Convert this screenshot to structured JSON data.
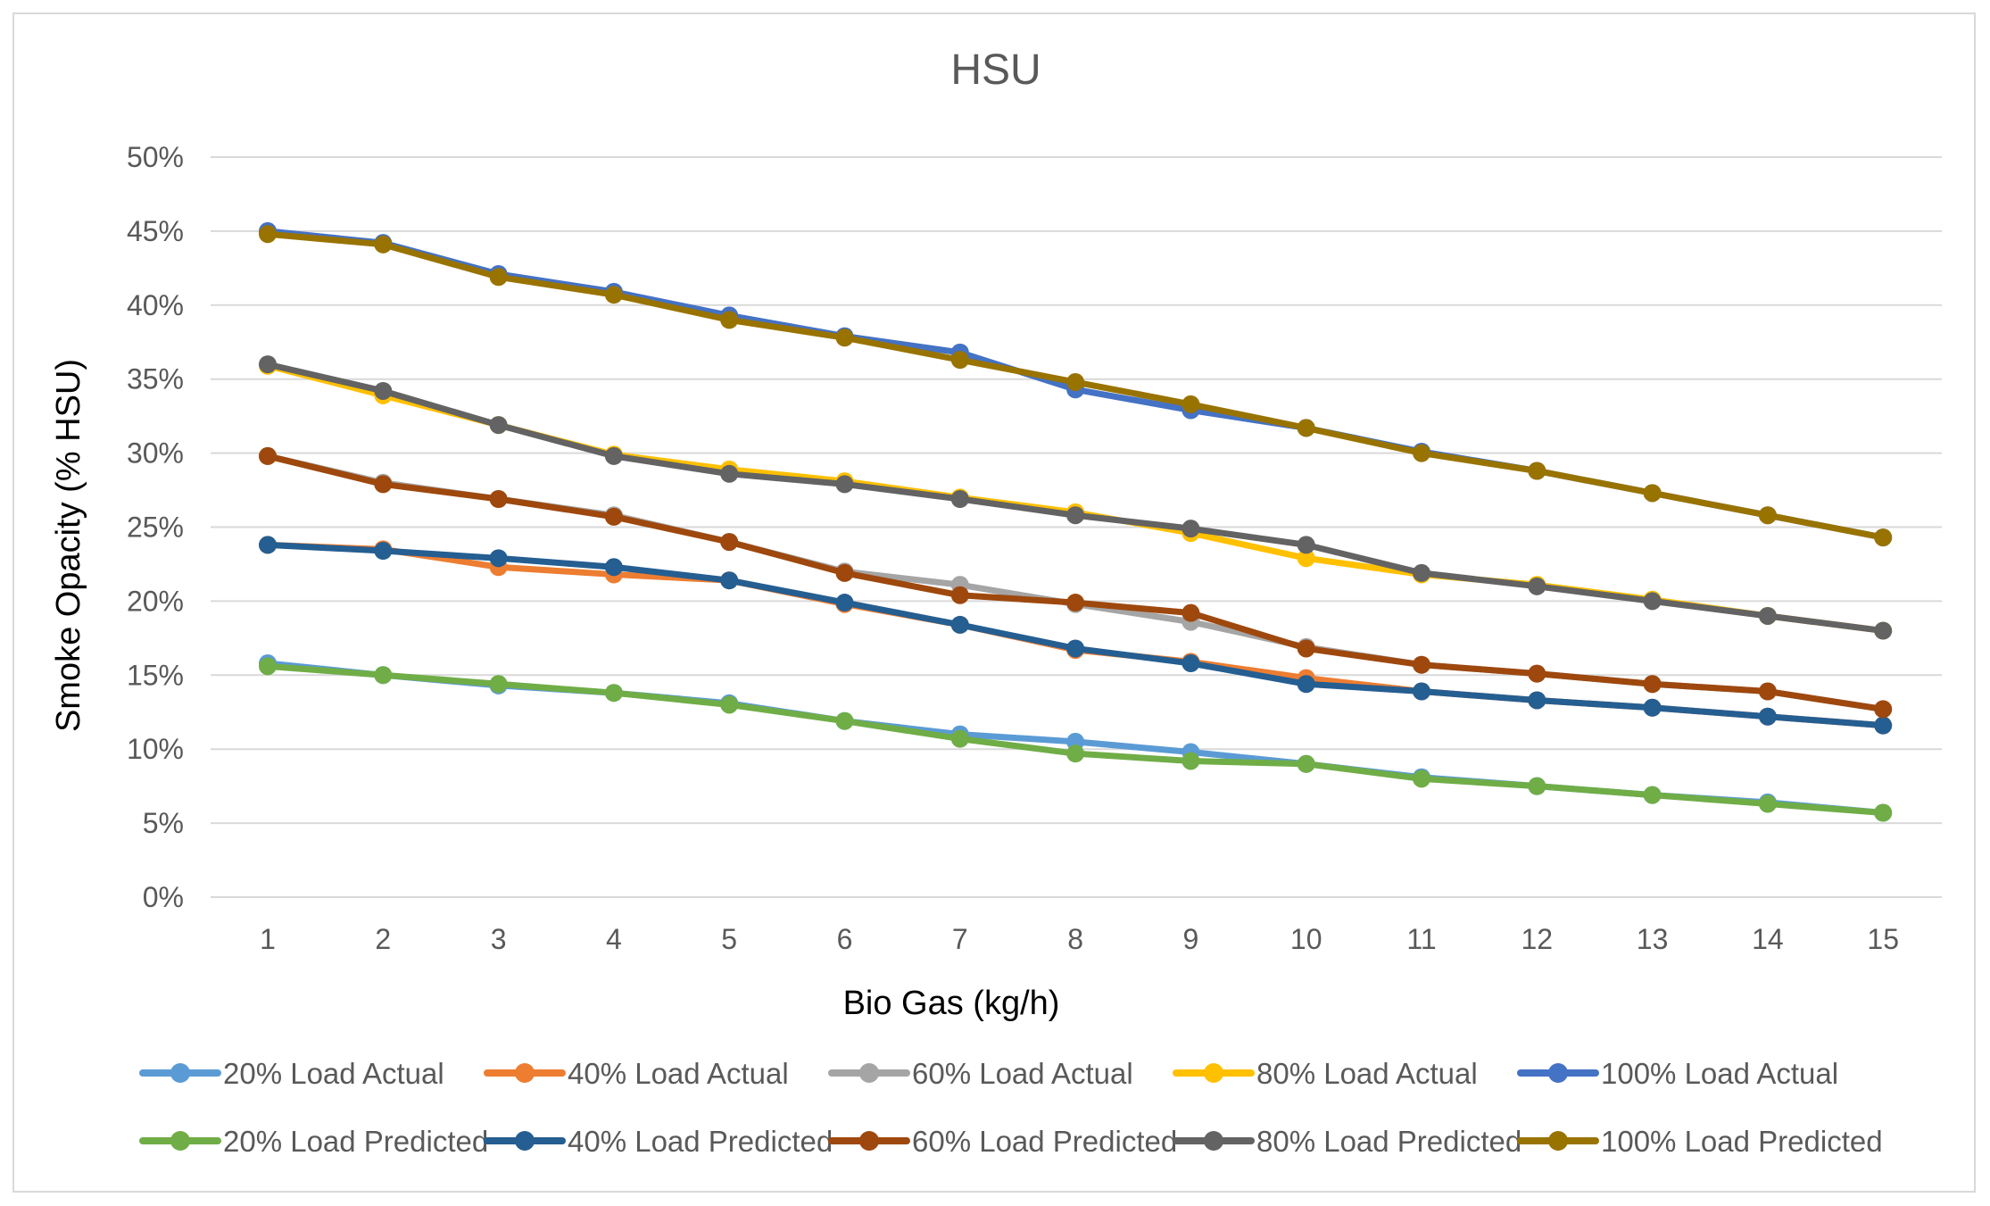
{
  "chart_data": {
    "type": "line",
    "title": "HSU",
    "xlabel": "Bio Gas (kg/h)",
    "ylabel": "Smoke Opacity (% HSU)",
    "ylim": [
      0,
      50
    ],
    "y_ticks": [
      "0%",
      "5%",
      "10%",
      "15%",
      "20%",
      "25%",
      "30%",
      "35%",
      "40%",
      "45%",
      "50%"
    ],
    "y_tick_values": [
      0,
      5,
      10,
      15,
      20,
      25,
      30,
      35,
      40,
      45,
      50
    ],
    "categories": [
      "1",
      "2",
      "3",
      "4",
      "5",
      "6",
      "7",
      "8",
      "9",
      "10",
      "11",
      "12",
      "13",
      "14",
      "15"
    ],
    "grid": true,
    "legend_position": "bottom",
    "series": [
      {
        "name": "20% Load Actual",
        "color": "#5B9BD5",
        "values": [
          15.8,
          15.0,
          14.3,
          13.8,
          13.1,
          11.9,
          11.0,
          10.5,
          9.8,
          9.0,
          8.1,
          7.5,
          6.9,
          6.4,
          5.7
        ]
      },
      {
        "name": "40% Load Actual",
        "color": "#ED7D31",
        "values": [
          23.8,
          23.5,
          22.3,
          21.8,
          21.4,
          19.8,
          18.4,
          16.7,
          15.9,
          14.8,
          13.9,
          13.3,
          12.8,
          12.2,
          11.6
        ]
      },
      {
        "name": "60% Load Actual",
        "color": "#A5A5A5",
        "values": [
          29.8,
          28.0,
          26.9,
          25.8,
          24.0,
          22.0,
          21.1,
          19.8,
          18.6,
          16.9,
          15.7,
          15.1,
          14.4,
          13.9,
          12.7
        ]
      },
      {
        "name": "80% Load Actual",
        "color": "#FFC000",
        "values": [
          35.9,
          33.9,
          31.9,
          29.9,
          28.9,
          28.1,
          27.0,
          26.0,
          24.6,
          22.9,
          21.8,
          21.1,
          20.1,
          19.0,
          18.0
        ]
      },
      {
        "name": "100% Load Actual",
        "color": "#4472C4",
        "values": [
          45.0,
          44.2,
          42.1,
          40.9,
          39.3,
          37.9,
          36.8,
          34.3,
          32.9,
          31.7,
          30.1,
          28.8,
          27.3,
          25.8,
          24.3
        ]
      },
      {
        "name": "20% Load Predicted",
        "color": "#70AD47",
        "values": [
          15.6,
          15.0,
          14.4,
          13.8,
          13.0,
          11.9,
          10.7,
          9.7,
          9.2,
          9.0,
          8.0,
          7.5,
          6.9,
          6.3,
          5.7
        ]
      },
      {
        "name": "40% Load Predicted",
        "color": "#255E91",
        "values": [
          23.8,
          23.4,
          22.9,
          22.3,
          21.4,
          19.9,
          18.4,
          16.8,
          15.8,
          14.4,
          13.9,
          13.3,
          12.8,
          12.2,
          11.6
        ]
      },
      {
        "name": "60% Load Predicted",
        "color": "#9E480E",
        "values": [
          29.8,
          27.9,
          26.9,
          25.7,
          24.0,
          21.9,
          20.4,
          19.9,
          19.2,
          16.8,
          15.7,
          15.1,
          14.4,
          13.9,
          12.7
        ]
      },
      {
        "name": "80% Load Predicted",
        "color": "#636363",
        "values": [
          36.0,
          34.2,
          31.9,
          29.8,
          28.6,
          27.9,
          26.9,
          25.8,
          24.9,
          23.8,
          21.9,
          21.0,
          20.0,
          19.0,
          18.0
        ]
      },
      {
        "name": "100% Load Predicted",
        "color": "#997300",
        "values": [
          44.8,
          44.1,
          41.9,
          40.7,
          39.0,
          37.8,
          36.3,
          34.8,
          33.3,
          31.7,
          30.0,
          28.8,
          27.3,
          25.8,
          24.3
        ]
      }
    ]
  }
}
